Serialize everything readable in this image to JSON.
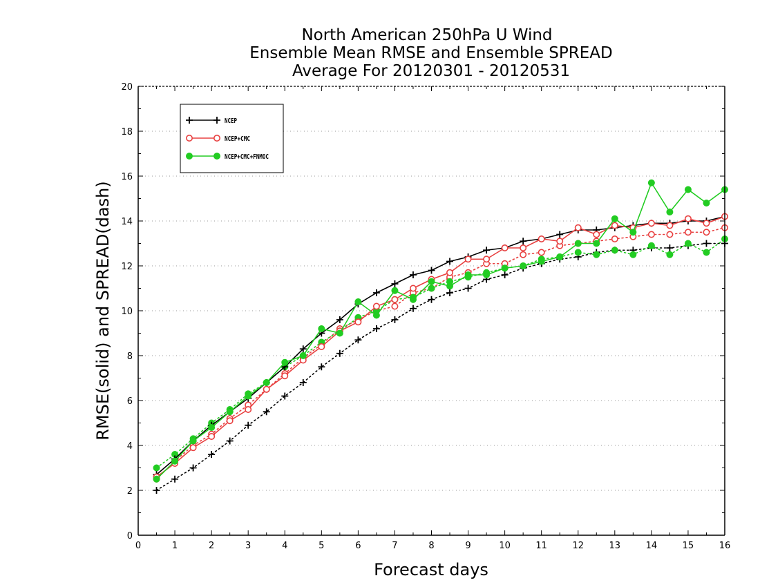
{
  "chart_data": {
    "type": "line",
    "title_lines": [
      "North American 250hPa U Wind",
      "Ensemble Mean RMSE and Ensemble SPREAD",
      "Average For 20120301 - 20120531"
    ],
    "xlabel": "Forecast days",
    "ylabel": "RMSE(solid) and SPREAD(dash)",
    "xlim": [
      0,
      16
    ],
    "ylim": [
      0,
      20
    ],
    "xticks": [
      "0",
      "1",
      "2",
      "3",
      "4",
      "5",
      "6",
      "7",
      "8",
      "9",
      "10",
      "11",
      "12",
      "13",
      "14",
      "15",
      "16"
    ],
    "yticks": [
      "0",
      "2",
      "4",
      "6",
      "8",
      "10",
      "12",
      "14",
      "16",
      "18",
      "20"
    ],
    "grid": "horizontal dotted",
    "legend_position": "top-left",
    "x": [
      0.5,
      1,
      1.5,
      2,
      2.5,
      3,
      3.5,
      4,
      4.5,
      5,
      5.5,
      6,
      6.5,
      7,
      7.5,
      8,
      8.5,
      9,
      9.5,
      10,
      10.5,
      11,
      11.5,
      12,
      12.5,
      13,
      13.5,
      14,
      14.5,
      15,
      15.5,
      16
    ],
    "series": [
      {
        "name": "NCEP",
        "color": "#000000",
        "marker": "plus",
        "rmse": [
          2.7,
          3.4,
          4.2,
          4.9,
          5.5,
          6.1,
          6.8,
          7.5,
          8.3,
          9.0,
          9.6,
          10.3,
          10.8,
          11.2,
          11.6,
          11.8,
          12.2,
          12.4,
          12.7,
          12.8,
          13.1,
          13.2,
          13.4,
          13.6,
          13.6,
          13.7,
          13.8,
          13.9,
          13.9,
          14.0,
          14.0,
          14.2
        ],
        "spread": [
          2.0,
          2.5,
          3.0,
          3.6,
          4.2,
          4.9,
          5.5,
          6.2,
          6.8,
          7.5,
          8.1,
          8.7,
          9.2,
          9.6,
          10.1,
          10.5,
          10.8,
          11.0,
          11.4,
          11.6,
          11.9,
          12.1,
          12.3,
          12.4,
          12.6,
          12.7,
          12.7,
          12.8,
          12.8,
          12.9,
          13.0,
          13.0
        ]
      },
      {
        "name": "NCEP+CMC",
        "color": "#e84040",
        "marker": "circle",
        "rmse": [
          2.6,
          3.2,
          3.9,
          4.4,
          5.1,
          5.6,
          6.5,
          7.1,
          7.8,
          8.4,
          9.1,
          9.5,
          10.2,
          10.5,
          11.0,
          11.4,
          11.7,
          12.3,
          12.3,
          12.8,
          12.8,
          13.2,
          13.1,
          13.7,
          13.4,
          13.8,
          13.7,
          13.9,
          13.8,
          14.1,
          13.9,
          14.2
        ],
        "spread": [
          2.5,
          3.3,
          4.0,
          4.5,
          5.2,
          5.8,
          6.5,
          7.2,
          7.9,
          8.5,
          9.2,
          9.6,
          10.0,
          10.2,
          10.8,
          11.0,
          11.5,
          11.7,
          12.1,
          12.1,
          12.5,
          12.6,
          12.9,
          13.0,
          13.1,
          13.2,
          13.3,
          13.4,
          13.4,
          13.5,
          13.5,
          13.7
        ]
      },
      {
        "name": "NCEP+CMC+FNMOC",
        "color": "#22cc22",
        "marker": "filled-circle",
        "rmse": [
          2.5,
          3.3,
          4.2,
          4.8,
          5.5,
          6.2,
          6.8,
          7.7,
          8.0,
          9.2,
          9.0,
          10.4,
          9.8,
          10.9,
          10.5,
          11.3,
          11.1,
          11.6,
          11.6,
          11.9,
          12.0,
          12.2,
          12.4,
          13.0,
          13.0,
          14.1,
          13.5,
          15.7,
          14.4,
          15.4,
          14.8,
          15.4
        ],
        "spread": [
          3.0,
          3.6,
          4.3,
          5.0,
          5.6,
          6.3,
          6.8,
          7.5,
          8.0,
          8.6,
          9.1,
          9.7,
          10.0,
          10.5,
          10.6,
          11.0,
          11.3,
          11.5,
          11.7,
          11.9,
          12.0,
          12.3,
          12.4,
          12.6,
          12.5,
          12.7,
          12.5,
          12.9,
          12.5,
          13.0,
          12.6,
          13.2
        ]
      }
    ]
  }
}
